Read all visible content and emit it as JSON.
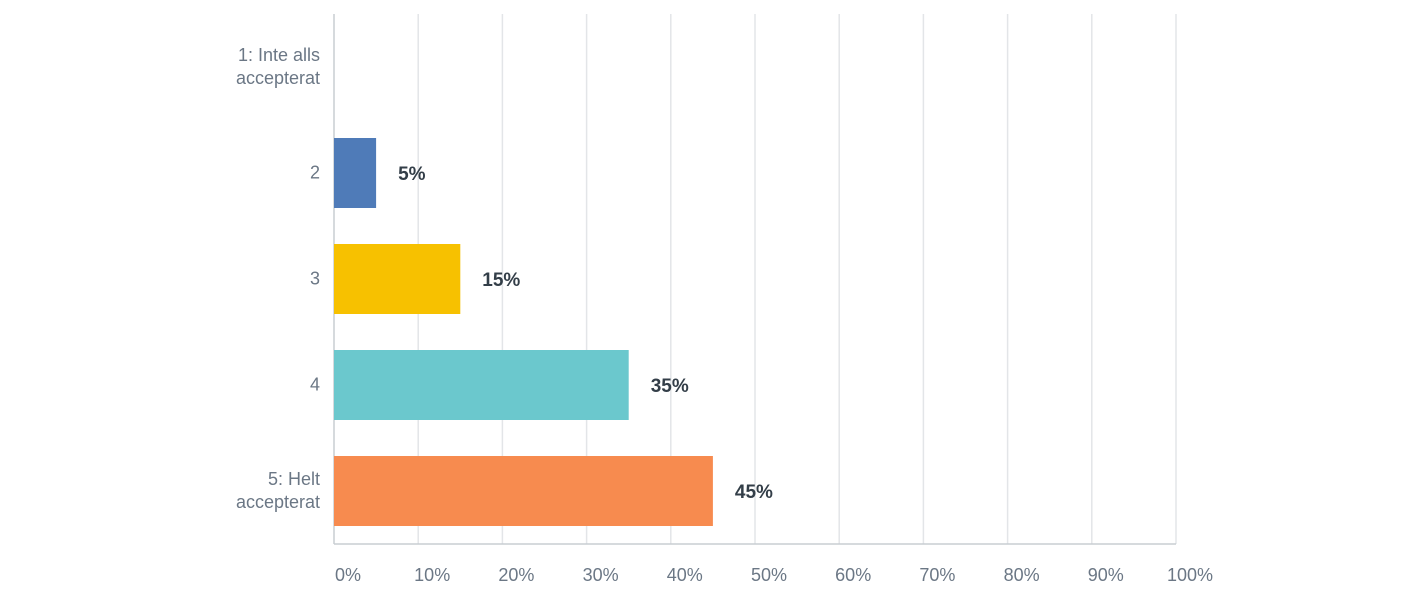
{
  "chart_data": {
    "type": "hbar",
    "categories": [
      "1: Inte alls\naccepterat",
      "2",
      "3",
      "4",
      "5: Helt\naccepterat"
    ],
    "values": [
      0,
      5,
      15,
      35,
      45
    ],
    "value_labels": [
      null,
      "5%",
      "15%",
      "35%",
      "45%"
    ],
    "colors": [
      null,
      "#4f7bb8",
      "#f7c100",
      "#6bc8cd",
      "#f78b4f"
    ],
    "xlim": [
      0,
      100
    ],
    "xticks": [
      {
        "value": 0,
        "label": "0%"
      },
      {
        "value": 10,
        "label": "10%"
      },
      {
        "value": 20,
        "label": "20%"
      },
      {
        "value": 30,
        "label": "30%"
      },
      {
        "value": 40,
        "label": "40%"
      },
      {
        "value": 50,
        "label": "50%"
      },
      {
        "value": 60,
        "label": "60%"
      },
      {
        "value": 70,
        "label": "70%"
      },
      {
        "value": 80,
        "label": "80%"
      },
      {
        "value": 90,
        "label": "90%"
      },
      {
        "value": 100,
        "label": "100%"
      }
    ],
    "grid": true
  }
}
